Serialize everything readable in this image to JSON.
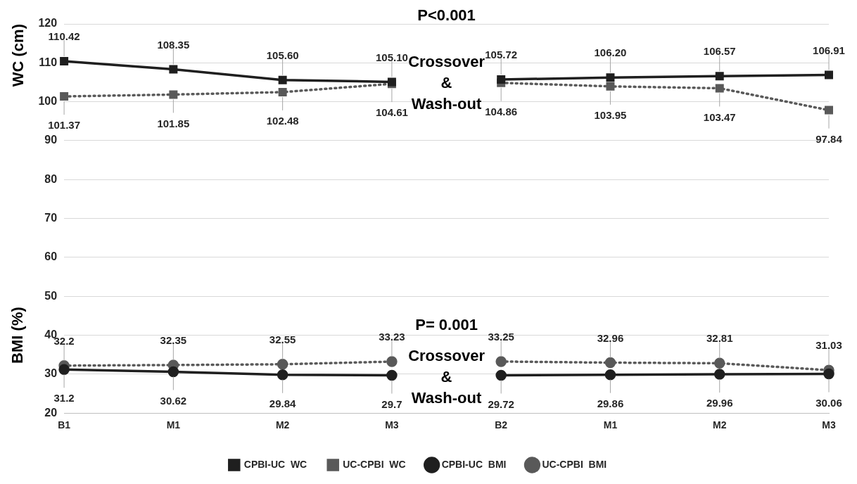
{
  "chart_data": {
    "type": "line",
    "categories": [
      "B1",
      "M1",
      "M2",
      "M3",
      "B2",
      "M1",
      "M2",
      "M3"
    ],
    "ylabel": "WC (cm)",
    "annotations": [
      "P<0.001",
      "Crossover\n&\nWash-out",
      "BMI (%)",
      "P= 0.001",
      "Crossover\n&\nWash-out"
    ],
    "ylim": [
      20,
      120
    ],
    "yticks": [
      20,
      30,
      40,
      50,
      60,
      70,
      80,
      90,
      100,
      110,
      120
    ],
    "grid": "y",
    "legend": "bottom",
    "series": [
      {
        "name": "CPBI-UC  WC",
        "color": "#1f1f1f",
        "marker": "square",
        "line_style": "solid",
        "values": [
          110.42,
          108.35,
          105.6,
          105.1,
          null,
          null,
          null,
          null
        ],
        "value_labels": [
          "110.42",
          "108.35",
          "105.60",
          "105.10",
          null,
          null,
          null,
          null
        ]
      },
      {
        "name": "UC-CPBI  WC",
        "color": "#595959",
        "marker": "square",
        "line_style": "dotted",
        "values": [
          101.37,
          101.85,
          102.48,
          104.61,
          null,
          null,
          null,
          null
        ],
        "value_labels": [
          "101.37",
          "101.85",
          "102.48",
          "104.61",
          null,
          null,
          null,
          null
        ]
      },
      {
        "name": "CPBI-UC  BMI",
        "color": "#1f1f1f",
        "marker": "circle",
        "line_style": "solid",
        "values": [
          31.2,
          30.62,
          29.84,
          29.7,
          null,
          null,
          null,
          null
        ],
        "value_labels": [
          "31.2",
          "30.62",
          "29.84",
          "29.7",
          null,
          null,
          null,
          null
        ]
      },
      {
        "name": "UC-CPBI  BMI",
        "color": "#595959",
        "marker": "circle",
        "line_style": "dotted",
        "values": [
          32.2,
          32.35,
          32.55,
          33.23,
          null,
          null,
          null,
          null
        ],
        "value_labels": [
          "32.2",
          "32.35",
          "32.55",
          "33.23",
          null,
          null,
          null,
          null
        ]
      },
      {
        "color": "#1f1f1f",
        "marker": "square",
        "line_style": "solid",
        "values": [
          null,
          null,
          null,
          null,
          105.72,
          106.2,
          106.57,
          106.91
        ],
        "value_labels": [
          null,
          null,
          null,
          null,
          "105.72",
          "106.20",
          "106.57",
          "106.91"
        ]
      },
      {
        "color": "#595959",
        "marker": "square",
        "line_style": "dotted",
        "values": [
          null,
          null,
          null,
          null,
          104.86,
          103.95,
          103.47,
          97.84
        ],
        "value_labels": [
          null,
          null,
          null,
          null,
          "104.86",
          "103.95",
          "103.47",
          "97.84"
        ]
      },
      {
        "color": "#1f1f1f",
        "marker": "circle",
        "line_style": "solid",
        "values": [
          null,
          null,
          null,
          null,
          29.72,
          29.86,
          29.96,
          30.06
        ],
        "value_labels": [
          null,
          null,
          null,
          null,
          "29.72",
          "29.86",
          "29.96",
          "30.06"
        ]
      },
      {
        "color": "#595959",
        "marker": "circle",
        "line_style": "dotted",
        "values": [
          null,
          null,
          null,
          null,
          33.25,
          32.96,
          32.81,
          31.03
        ],
        "value_labels": [
          null,
          null,
          null,
          null,
          "33.25",
          "32.96",
          "32.81",
          "31.03"
        ]
      }
    ]
  }
}
